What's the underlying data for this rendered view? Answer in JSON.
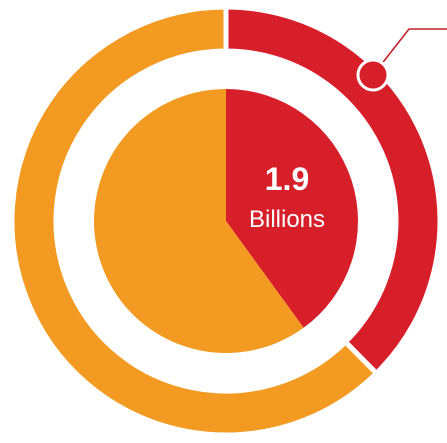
{
  "colors": {
    "highlight": "#d71f2a",
    "rest": "#f39a22",
    "background": "#ffffff",
    "callout_stroke": "#c0202a",
    "text": "#ffffff"
  },
  "chart_data": {
    "type": "pie",
    "center_value": "1.9",
    "center_unit": "Billions",
    "outer_ring": {
      "slices": [
        {
          "key": "highlight",
          "share": 0.376
        },
        {
          "key": "rest",
          "share": 0.624
        }
      ]
    },
    "inner_pie": {
      "slices": [
        {
          "key": "highlight",
          "share": 0.4
        },
        {
          "key": "rest",
          "share": 0.6
        }
      ]
    }
  }
}
